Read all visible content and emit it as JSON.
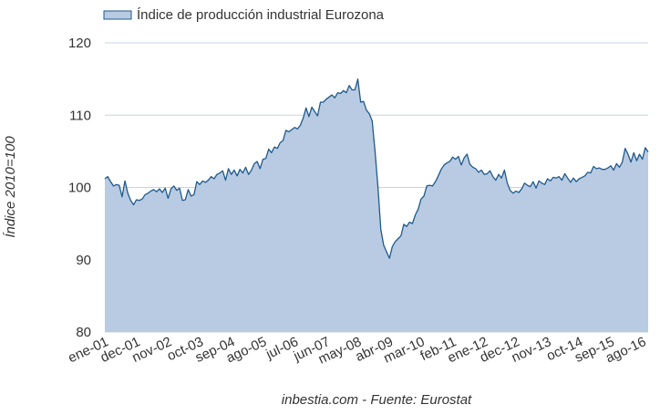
{
  "chart_data": {
    "type": "area",
    "series": [
      {
        "name": "Índice de producción industrial Eurozona",
        "color": "#1f5a8c",
        "fill": "#b8cbe2",
        "start": "2001-01",
        "values": [
          101.2,
          101.5,
          100.8,
          100.2,
          100.4,
          100.3,
          98.7,
          100.9,
          99.2,
          98.2,
          97.6,
          98.3,
          98.2,
          98.4,
          99.0,
          99.2,
          99.5,
          99.7,
          99.4,
          99.8,
          99.3,
          99.9,
          98.5,
          99.8,
          100.2,
          99.6,
          99.9,
          98.2,
          98.3,
          99.7,
          98.8,
          99.0,
          100.8,
          100.4,
          100.9,
          100.7,
          101.0,
          101.5,
          101.2,
          101.8,
          102.0,
          102.3,
          101.0,
          102.6,
          101.8,
          102.4,
          101.6,
          102.5,
          102.0,
          102.8,
          101.8,
          102.4,
          103.3,
          103.6,
          102.6,
          103.9,
          104.0,
          105.3,
          104.8,
          105.6,
          105.4,
          106.2,
          106.5,
          107.9,
          107.7,
          108.0,
          108.3,
          108.1,
          108.6,
          109.6,
          111.0,
          109.8,
          111.1,
          110.5,
          109.9,
          111.8,
          111.8,
          112.2,
          112.5,
          112.8,
          112.4,
          113.1,
          113.0,
          113.4,
          113.1,
          114.1,
          113.5,
          113.5,
          115.0,
          111.8,
          111.9,
          110.7,
          110.2,
          109.2,
          105.0,
          100.1,
          94.2,
          92.0,
          91.1,
          90.2,
          91.8,
          92.5,
          92.9,
          93.3,
          94.9,
          94.6,
          95.2,
          95.0,
          96.2,
          97.0,
          98.4,
          98.8,
          100.2,
          100.3,
          100.2,
          100.8,
          101.6,
          102.5,
          103.1,
          103.4,
          103.6,
          104.2,
          103.9,
          104.3,
          103.1,
          104.1,
          104.6,
          103.2,
          102.8,
          102.6,
          102.1,
          102.4,
          101.8,
          101.9,
          102.3,
          101.5,
          101.0,
          101.8,
          101.3,
          102.4,
          100.6,
          99.6,
          99.2,
          99.5,
          99.3,
          99.8,
          100.6,
          100.3,
          100.1,
          100.8,
          99.9,
          100.9,
          100.6,
          100.4,
          101.2,
          100.9,
          101.4,
          101.3,
          101.5,
          101.0,
          101.9,
          101.3,
          100.7,
          101.3,
          100.8,
          101.2,
          101.4,
          101.6,
          102.1,
          102.0,
          102.9,
          102.6,
          102.7,
          102.5,
          102.5,
          102.7,
          103.0,
          102.4,
          103.3,
          102.8,
          103.5,
          105.4,
          104.6,
          103.5,
          104.8,
          103.7,
          104.6,
          103.9,
          105.5,
          104.9
        ]
      }
    ],
    "x_tick_labels": [
      "ene-01",
      "dec-01",
      "nov-02",
      "oct-03",
      "sep-04",
      "ago-05",
      "jul-06",
      "jun-07",
      "may-08",
      "abr-09",
      "mar-10",
      "feb-11",
      "ene-12",
      "dec-12",
      "nov-13",
      "oct-14",
      "sep-15",
      "ago-16"
    ],
    "y_ticks": [
      80,
      90,
      100,
      110,
      120
    ],
    "ylim": [
      80,
      120
    ],
    "xlabel": "",
    "ylabel": "Índice 2010=100",
    "legend": "top-left",
    "grid": true
  },
  "source_text": "inbestia.com - Fuente: Eurostat"
}
